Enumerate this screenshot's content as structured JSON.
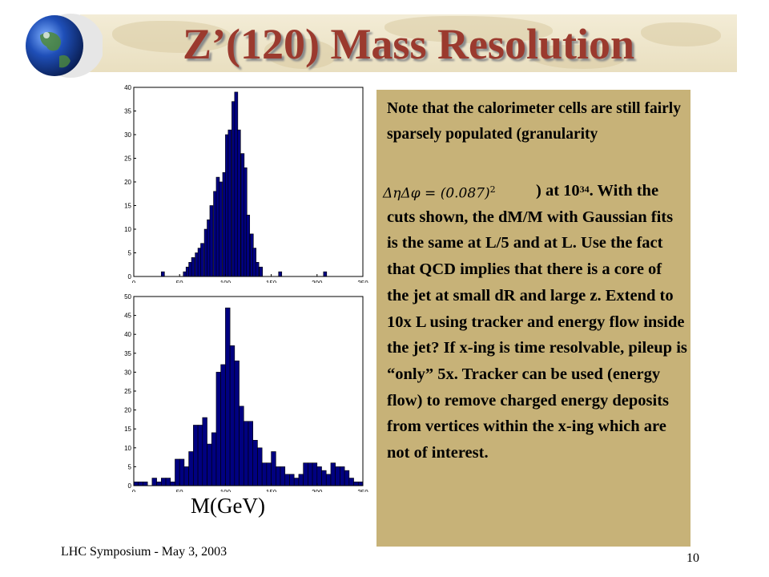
{
  "slide": {
    "title": "Z’(120) Mass Resolution",
    "footer_left": "LHC Symposium - May 3, 2003",
    "page_number": "10",
    "x_unit_label": "M(GeV)",
    "note": {
      "para1": "Note that the calorimeter cells are still fairly sparsely populated (granularity",
      "formula": "ΔηΔφ = (0.087)",
      "formula_sup": "2",
      "para2_pre": ") at 10",
      "para2_sup": "34",
      "para2_rest": ". With the cuts shown, the dM/M with Gaussian fits is the same at L/5 and at L. Use the fact that QCD implies that there is a core of the jet at small dR and large z. Extend to 10x L using tracker and energy flow inside the jet? If x-ing is time resolvable, pileup is “only” 5x. Tracker can be used (energy flow) to remove charged energy deposits from vertices within the x-ing which are not of interest."
    },
    "colors": {
      "bar": "#000080",
      "title": "#9b3a2e",
      "note_bg": "#c7b278"
    }
  },
  "chart_data": [
    {
      "type": "bar",
      "bin_width": 3.5,
      "bin_starts": [
        30,
        54,
        57,
        60,
        63,
        67,
        70,
        73,
        77,
        80,
        83,
        87,
        90,
        93,
        97,
        100,
        103,
        107,
        110,
        113,
        117,
        120,
        123,
        127,
        130,
        133,
        137,
        158,
        207
      ],
      "values": [
        1,
        1,
        2,
        3,
        4,
        5,
        6,
        7,
        10,
        12,
        15,
        18,
        21,
        20,
        22,
        30,
        31,
        37,
        39,
        31,
        26,
        23,
        13,
        9,
        6,
        3,
        2,
        1,
        1
      ],
      "xlim": [
        0,
        250
      ],
      "ylim": [
        0,
        40
      ],
      "xticks": [
        "0",
        "50",
        "100",
        "150",
        "200",
        "250"
      ],
      "yticks": [
        "0",
        "5",
        "10",
        "15",
        "20",
        "25",
        "30",
        "35",
        "40"
      ],
      "title": "",
      "xlabel": "",
      "ylabel": ""
    },
    {
      "type": "bar",
      "bin_width": 5,
      "bin_starts": [
        0,
        5,
        10,
        15,
        20,
        25,
        30,
        35,
        40,
        45,
        50,
        55,
        60,
        65,
        70,
        75,
        80,
        85,
        90,
        95,
        100,
        105,
        110,
        115,
        120,
        125,
        130,
        135,
        140,
        145,
        150,
        155,
        160,
        165,
        170,
        175,
        180,
        185,
        190,
        195,
        200,
        205,
        210,
        215,
        220,
        225,
        230,
        235,
        240,
        245
      ],
      "values": [
        1,
        1,
        1,
        0,
        2,
        1,
        2,
        2,
        1,
        7,
        7,
        5,
        9,
        16,
        16,
        18,
        11,
        14,
        30,
        32,
        47,
        37,
        33,
        21,
        17,
        17,
        12,
        10,
        6,
        6,
        9,
        5,
        5,
        3,
        3,
        2,
        3,
        6,
        6,
        6,
        5,
        4,
        3,
        6,
        5,
        5,
        4,
        2,
        1,
        1
      ],
      "xlim": [
        0,
        250
      ],
      "ylim": [
        0,
        50
      ],
      "xticks": [
        "0",
        "50",
        "100",
        "150",
        "200",
        "250"
      ],
      "yticks": [
        "0",
        "5",
        "10",
        "15",
        "20",
        "25",
        "30",
        "35",
        "40",
        "45",
        "50"
      ],
      "title": "",
      "xlabel": "",
      "ylabel": ""
    }
  ]
}
